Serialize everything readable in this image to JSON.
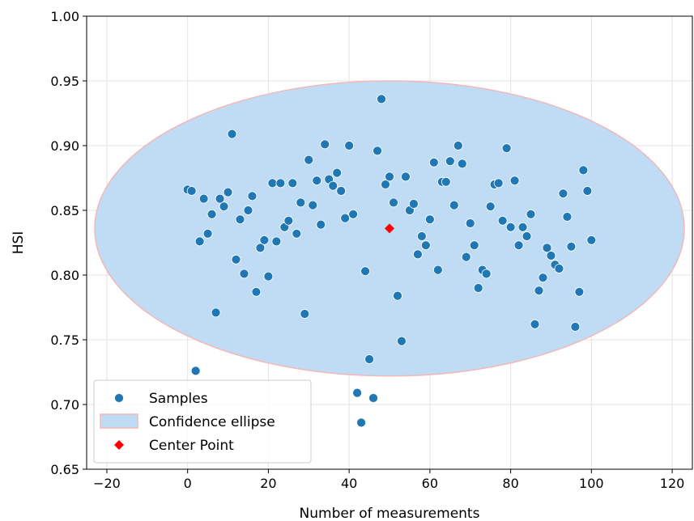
{
  "chart_data": {
    "type": "scatter",
    "xlabel": "Number of measurements",
    "ylabel": "HSI",
    "xlim": [
      -25,
      125
    ],
    "ylim": [
      0.65,
      1.0
    ],
    "xticks": [
      -20,
      0,
      20,
      40,
      60,
      80,
      100,
      120
    ],
    "xtick_labels": [
      "−20",
      "0",
      "20",
      "40",
      "60",
      "80",
      "100",
      "120"
    ],
    "yticks": [
      0.65,
      0.7,
      0.75,
      0.8,
      0.85,
      0.9,
      0.95,
      1.0
    ],
    "ytick_labels": [
      "0.65",
      "0.70",
      "0.75",
      "0.80",
      "0.85",
      "0.90",
      "0.95",
      "1.00"
    ],
    "grid": true,
    "legend_position": "bottom-left",
    "colors": {
      "samples": "#1f77b4",
      "ellipse_fill": "#bfdcf4",
      "ellipse_edge": "#f2b8b8",
      "center": "#ff0000"
    },
    "legend": [
      {
        "label": "Samples",
        "marker": "circle"
      },
      {
        "label": "Confidence ellipse",
        "marker": "patch"
      },
      {
        "label": "Center Point",
        "marker": "diamond"
      }
    ],
    "ellipse": {
      "center_x": 50,
      "center_y": 0.836,
      "half_width_x": 73,
      "half_height_y": 0.114
    },
    "center_point": {
      "x": 50,
      "y": 0.836
    },
    "series": [
      {
        "label": "Samples",
        "points": [
          [
            0,
            0.866
          ],
          [
            1,
            0.865
          ],
          [
            2,
            0.726
          ],
          [
            3,
            0.826
          ],
          [
            4,
            0.859
          ],
          [
            5,
            0.832
          ],
          [
            6,
            0.847
          ],
          [
            7,
            0.771
          ],
          [
            8,
            0.859
          ],
          [
            9,
            0.853
          ],
          [
            10,
            0.864
          ],
          [
            11,
            0.909
          ],
          [
            12,
            0.812
          ],
          [
            13,
            0.843
          ],
          [
            14,
            0.801
          ],
          [
            15,
            0.85
          ],
          [
            16,
            0.861
          ],
          [
            17,
            0.787
          ],
          [
            18,
            0.821
          ],
          [
            19,
            0.827
          ],
          [
            20,
            0.799
          ],
          [
            21,
            0.871
          ],
          [
            22,
            0.826
          ],
          [
            23,
            0.871
          ],
          [
            24,
            0.837
          ],
          [
            25,
            0.842
          ],
          [
            26,
            0.871
          ],
          [
            27,
            0.832
          ],
          [
            28,
            0.856
          ],
          [
            29,
            0.77
          ],
          [
            30,
            0.889
          ],
          [
            31,
            0.854
          ],
          [
            32,
            0.873
          ],
          [
            33,
            0.839
          ],
          [
            34,
            0.901
          ],
          [
            35,
            0.874
          ],
          [
            36,
            0.869
          ],
          [
            37,
            0.879
          ],
          [
            38,
            0.865
          ],
          [
            39,
            0.844
          ],
          [
            40,
            0.9
          ],
          [
            41,
            0.847
          ],
          [
            42,
            0.709
          ],
          [
            43,
            0.686
          ],
          [
            44,
            0.803
          ],
          [
            45,
            0.735
          ],
          [
            46,
            0.705
          ],
          [
            47,
            0.896
          ],
          [
            48,
            0.936
          ],
          [
            49,
            0.87
          ],
          [
            50,
            0.876
          ],
          [
            51,
            0.856
          ],
          [
            52,
            0.784
          ],
          [
            53,
            0.749
          ],
          [
            54,
            0.876
          ],
          [
            55,
            0.85
          ],
          [
            56,
            0.855
          ],
          [
            57,
            0.816
          ],
          [
            58,
            0.83
          ],
          [
            59,
            0.823
          ],
          [
            60,
            0.843
          ],
          [
            61,
            0.887
          ],
          [
            62,
            0.804
          ],
          [
            63,
            0.872
          ],
          [
            64,
            0.872
          ],
          [
            65,
            0.888
          ],
          [
            66,
            0.854
          ],
          [
            67,
            0.9
          ],
          [
            68,
            0.886
          ],
          [
            69,
            0.814
          ],
          [
            70,
            0.84
          ],
          [
            71,
            0.823
          ],
          [
            72,
            0.79
          ],
          [
            73,
            0.804
          ],
          [
            74,
            0.801
          ],
          [
            75,
            0.853
          ],
          [
            76,
            0.87
          ],
          [
            77,
            0.871
          ],
          [
            78,
            0.842
          ],
          [
            79,
            0.898
          ],
          [
            80,
            0.837
          ],
          [
            81,
            0.873
          ],
          [
            82,
            0.823
          ],
          [
            83,
            0.837
          ],
          [
            84,
            0.83
          ],
          [
            85,
            0.847
          ],
          [
            86,
            0.762
          ],
          [
            87,
            0.788
          ],
          [
            88,
            0.798
          ],
          [
            89,
            0.821
          ],
          [
            90,
            0.815
          ],
          [
            91,
            0.808
          ],
          [
            92,
            0.805
          ],
          [
            93,
            0.863
          ],
          [
            94,
            0.845
          ],
          [
            95,
            0.822
          ],
          [
            96,
            0.76
          ],
          [
            97,
            0.787
          ],
          [
            98,
            0.881
          ],
          [
            99,
            0.865
          ],
          [
            100,
            0.827
          ]
        ]
      }
    ]
  }
}
